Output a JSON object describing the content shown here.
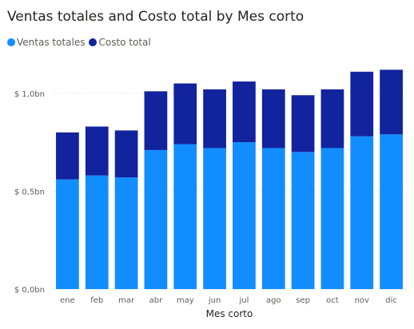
{
  "chart_data": {
    "type": "bar",
    "stacked": true,
    "title": "Ventas totales and Costo total by Mes corto",
    "xlabel": "Mes corto",
    "ylabel": "",
    "categories": [
      "ene",
      "feb",
      "mar",
      "abr",
      "may",
      "jun",
      "jul",
      "ago",
      "sep",
      "oct",
      "nov",
      "dic"
    ],
    "series": [
      {
        "name": "Ventas totales",
        "color": "#118DFF",
        "values": [
          0.56,
          0.58,
          0.57,
          0.71,
          0.74,
          0.72,
          0.75,
          0.72,
          0.7,
          0.72,
          0.78,
          0.79
        ]
      },
      {
        "name": "Costo total",
        "color": "#12239E",
        "values": [
          0.24,
          0.25,
          0.24,
          0.3,
          0.31,
          0.3,
          0.31,
          0.3,
          0.29,
          0.3,
          0.33,
          0.33
        ]
      }
    ],
    "yticks": [
      0,
      0.5,
      1.0
    ],
    "ytick_labels": [
      "$ 0,0bn",
      "$ 0,5bn",
      "$ 1,0bn"
    ],
    "ylim": [
      0,
      1.15
    ],
    "grid": true,
    "legend_position": "top-left"
  }
}
